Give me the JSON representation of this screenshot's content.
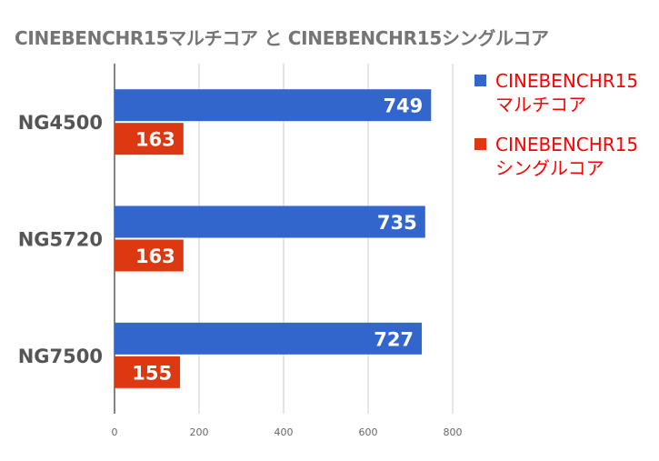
{
  "chart_data": {
    "type": "bar",
    "orientation": "horizontal",
    "title": "CINEBENCHR15マルチコア と CINEBENCHR15シングルコア",
    "categories": [
      "NG4500",
      "NG5720",
      "NG7500"
    ],
    "series": [
      {
        "name": "CINEBENCHR15マルチコア",
        "values": [
          749,
          735,
          727
        ],
        "color": "#3366cc"
      },
      {
        "name": "CINEBENCHR15シングルコア",
        "values": [
          163,
          163,
          155
        ],
        "color": "#dc3912"
      }
    ],
    "xlim": [
      0,
      800
    ],
    "xticks": [
      0,
      200,
      400,
      600,
      800
    ],
    "grid": true,
    "legend": "right",
    "data_labels": true,
    "xlabel": "",
    "ylabel": ""
  }
}
